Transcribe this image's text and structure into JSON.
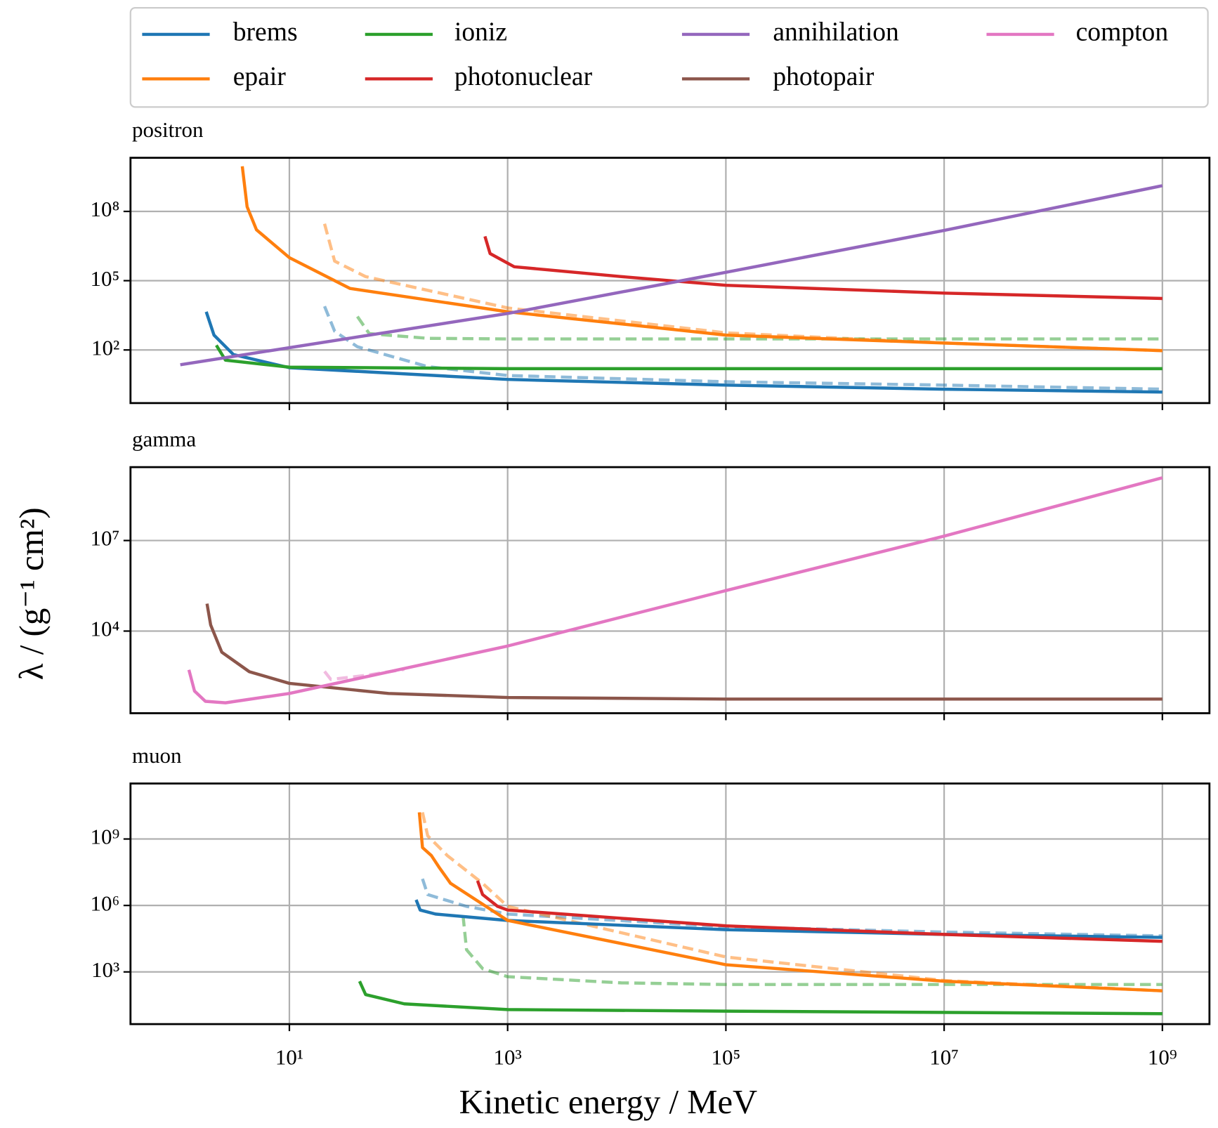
{
  "xlabel": "Kinetic energy / MeV",
  "ylabel": "λ / (g⁻¹ cm²)",
  "legend": [
    {
      "name": "brems",
      "color": "#1f77b4"
    },
    {
      "name": "epair",
      "color": "#ff7f0e"
    },
    {
      "name": "ioniz",
      "color": "#2ca02c"
    },
    {
      "name": "photonuclear",
      "color": "#d62728"
    },
    {
      "name": "annihilation",
      "color": "#9467bd"
    },
    {
      "name": "photopair",
      "color": "#8c564b"
    },
    {
      "name": "compton",
      "color": "#e377c2"
    }
  ],
  "chart_data": [
    {
      "type": "line",
      "title": "positron",
      "xscale": "log",
      "yscale": "log",
      "grid": true,
      "xlim": [
        0.35,
        2700000000
      ],
      "ylim": [
        0.5,
        21000000000
      ],
      "xticks": [
        10,
        1000,
        100000,
        10000000,
        1000000000
      ],
      "yticks": [
        {
          "value": 100,
          "label": "10²"
        },
        {
          "value": 100000,
          "label": "10⁵"
        },
        {
          "value": 100000000,
          "label": "10⁸"
        }
      ],
      "series": [
        {
          "color": "#1f77b4",
          "dashed": true,
          "alpha": 0.5,
          "x": [
            21,
            26,
            42,
            185,
            1000,
            100000,
            10000000,
            1000000000
          ],
          "values": [
            7800,
            650,
            137,
            19,
            7.8,
            4.2,
            3,
            2
          ]
        },
        {
          "color": "#ff7f0e",
          "dashed": true,
          "alpha": 0.5,
          "x": [
            21,
            26,
            50,
            1000,
            100000,
            10000000,
            1000000000
          ],
          "values": [
            29000000,
            700000,
            150000,
            6600,
            550,
            200,
            93
          ]
        },
        {
          "color": "#2ca02c",
          "dashed": true,
          "alpha": 0.5,
          "x": [
            42,
            54,
            185,
            1000,
            1000000000
          ],
          "values": [
            2800,
            510,
            320,
            300,
            300
          ]
        },
        {
          "color": "#1f77b4",
          "dashed": false,
          "alpha": 1,
          "x": [
            1.73,
            2.04,
            3.07,
            10,
            1000,
            100000,
            10000000,
            1000000000
          ],
          "values": [
            4500,
            440,
            63,
            17,
            5.3,
            3,
            2,
            1.5
          ]
        },
        {
          "color": "#ff7f0e",
          "dashed": false,
          "alpha": 1,
          "x": [
            3.7,
            4.1,
            5,
            10,
            36,
            1000,
            100000,
            10000000,
            1000000000
          ],
          "values": [
            9000000000,
            160000000,
            16000000,
            1000000,
            46000,
            4500,
            440,
            200,
            93
          ]
        },
        {
          "color": "#2ca02c",
          "dashed": false,
          "alpha": 1,
          "x": [
            2.14,
            2.6,
            10,
            1000,
            1000000000
          ],
          "values": [
            160,
            36,
            18,
            15.5,
            15.5
          ]
        },
        {
          "color": "#d62728",
          "dashed": false,
          "alpha": 1,
          "x": [
            620,
            690,
            1150,
            11000,
            100000,
            10000000,
            1000000000
          ],
          "values": [
            8300000,
            1500000,
            400000,
            150000,
            63000,
            29000,
            17000
          ]
        },
        {
          "color": "#9467bd",
          "dashed": false,
          "alpha": 1,
          "x": [
            1,
            1000,
            100000,
            10000000,
            1000000000
          ],
          "values": [
            23,
            3800,
            230000,
            15000000,
            1300000000
          ]
        }
      ]
    },
    {
      "type": "line",
      "title": "gamma",
      "xscale": "log",
      "yscale": "log",
      "grid": true,
      "xlim": [
        0.35,
        2700000000
      ],
      "ylim": [
        19,
        2700000000
      ],
      "xticks": [
        10,
        1000,
        100000,
        10000000,
        1000000000
      ],
      "yticks": [
        {
          "value": 10000,
          "label": "10⁴"
        },
        {
          "value": 10000000,
          "label": "10⁷"
        }
      ],
      "series": [
        {
          "color": "#e377c2",
          "dashed": true,
          "alpha": 0.5,
          "x": [
            21,
            24,
            50,
            113
          ],
          "values": [
            460,
            250,
            340,
            540
          ]
        },
        {
          "color": "#8c564b",
          "dashed": false,
          "alpha": 1,
          "x": [
            1.76,
            1.9,
            2.4,
            4.3,
            10,
            81,
            1000,
            100000,
            1000000000
          ],
          "values": [
            81000,
            16000,
            2000,
            450,
            185,
            86,
            63,
            56,
            56
          ]
        },
        {
          "color": "#e377c2",
          "dashed": false,
          "alpha": 1,
          "x": [
            1.2,
            1.35,
            1.7,
            2.6,
            10,
            1000,
            100000,
            10000000,
            1000000000
          ],
          "values": [
            520,
            103,
            47,
            42,
            86,
            3200,
            220000,
            14000000,
            1200000000
          ]
        }
      ]
    },
    {
      "type": "line",
      "title": "muon",
      "xscale": "log",
      "yscale": "log",
      "grid": true,
      "xlim": [
        0.35,
        2700000000
      ],
      "ylim": [
        4.4,
        320000000000
      ],
      "xticks": [
        {
          "value": 10,
          "label": "10¹"
        },
        {
          "value": 1000,
          "label": "10³"
        },
        {
          "value": 100000,
          "label": "10⁵"
        },
        {
          "value": 10000000,
          "label": "10⁷"
        },
        {
          "value": 1000000000,
          "label": "10⁹"
        }
      ],
      "yticks": [
        {
          "value": 1000,
          "label": "10³"
        },
        {
          "value": 1000000,
          "label": "10⁶"
        },
        {
          "value": 1000000000,
          "label": "10⁹"
        }
      ],
      "series": [
        {
          "color": "#1f77b4",
          "dashed": true,
          "alpha": 0.5,
          "x": [
            166,
            185,
            420,
            1000,
            100000,
            10000000,
            1000000000
          ],
          "values": [
            16000000,
            3100000,
            910000,
            410000,
            110000,
            63000,
            42000
          ]
        },
        {
          "color": "#ff7f0e",
          "dashed": true,
          "alpha": 0.5,
          "x": [
            166,
            185,
            280,
            590,
            1000,
            100000,
            10000000,
            1000000000
          ],
          "values": [
            16000000000,
            1400000000,
            180000000,
            10000000,
            910000,
            4700,
            410,
            140
          ]
        },
        {
          "color": "#2ca02c",
          "dashed": true,
          "alpha": 0.5,
          "x": [
            390,
            420,
            590,
            1000,
            11000,
            100000,
            1000000000
          ],
          "values": [
            350000,
            10000,
            1400,
            610,
            320,
            270,
            270
          ]
        },
        {
          "color": "#1f77b4",
          "dashed": false,
          "alpha": 1,
          "x": [
            145,
            158,
            218,
            1000,
            100000,
            10000000,
            1000000000
          ],
          "values": [
            1800000,
            620000,
            410000,
            210000,
            81000,
            49000,
            36000
          ]
        },
        {
          "color": "#ff7f0e",
          "dashed": false,
          "alpha": 1,
          "x": [
            155,
            166,
            200,
            235,
            300,
            1000,
            100000,
            10000000,
            1000000000
          ],
          "values": [
            16000000000,
            410000000,
            180000000,
            54000000,
            10000000,
            210000,
            2100,
            380,
            140
          ]
        },
        {
          "color": "#2ca02c",
          "dashed": false,
          "alpha": 1,
          "x": [
            44,
            50,
            113,
            1000,
            100000,
            1000000000
          ],
          "values": [
            380,
            95,
            36,
            20,
            17,
            13
          ]
        },
        {
          "color": "#d62728",
          "dashed": false,
          "alpha": 1,
          "x": [
            530,
            590,
            810,
            1000,
            100000,
            10000000,
            1000000000
          ],
          "values": [
            13000000,
            3100000,
            910000,
            620000,
            120000,
            49000,
            24000
          ]
        }
      ]
    }
  ]
}
